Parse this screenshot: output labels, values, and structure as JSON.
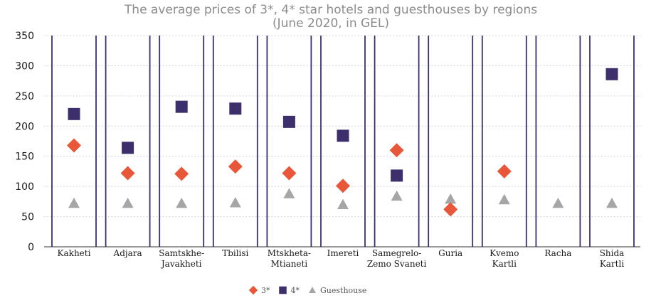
{
  "chart_data": {
    "type": "scatter",
    "title": "The average prices of 3*, 4* star hotels and guesthouses by regions",
    "subtitle": "(June 2020, in GEL)",
    "xlabel": "",
    "ylabel": "",
    "ylim": [
      0,
      350
    ],
    "yticks": [
      "0",
      "50",
      "100",
      "150",
      "200",
      "250",
      "300",
      "350"
    ],
    "grid": "horizontal-dotted",
    "legend_position": "bottom-center",
    "categories": [
      [
        "Kakheti"
      ],
      [
        "Adjara"
      ],
      [
        "Samtskhe-",
        "Javakheti"
      ],
      [
        "Tbilisi"
      ],
      [
        "Mtskheta-",
        "Mtianeti"
      ],
      [
        "Imereti"
      ],
      [
        "Samegrelo-",
        "Zemo Svaneti"
      ],
      [
        "Guria"
      ],
      [
        "Kvemo",
        "Kartli"
      ],
      [
        "Racha"
      ],
      [
        "Shida",
        "Kartli"
      ]
    ],
    "series": [
      {
        "name": "3*",
        "marker": "diamond",
        "color": "#e8573a",
        "values": [
          168,
          122,
          121,
          133,
          122,
          101,
          160,
          62,
          125,
          null,
          null
        ]
      },
      {
        "name": "4*",
        "marker": "square",
        "color": "#3d2f6b",
        "values": [
          220,
          164,
          232,
          229,
          207,
          184,
          118,
          null,
          null,
          null,
          286
        ]
      },
      {
        "name": "Guesthouse",
        "marker": "triangle",
        "color": "#a6a6a6",
        "values": [
          72,
          72,
          72,
          73,
          88,
          70,
          84,
          79,
          78,
          72,
          72
        ]
      }
    ],
    "colors": {
      "group_border": "#3d2f6b",
      "grid": "#c8c8c8",
      "axis": "#333333"
    }
  }
}
